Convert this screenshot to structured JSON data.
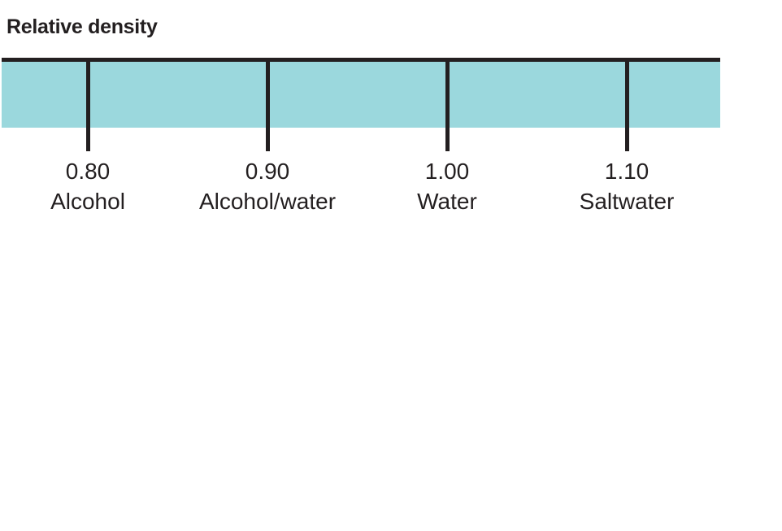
{
  "title": "Relative density",
  "colors": {
    "background": "#ffffff",
    "band": "#9bd8dd",
    "line": "#231f20",
    "text": "#231f20"
  },
  "scale": {
    "ticks": [
      {
        "value": "0.80",
        "substance": "Alcohol"
      },
      {
        "value": "0.90",
        "substance": "Alcohol/water"
      },
      {
        "value": "1.00",
        "substance": "Water"
      },
      {
        "value": "1.10",
        "substance": "Saltwater"
      }
    ]
  },
  "chart_data": {
    "type": "scatter",
    "variant": "number-line",
    "title": "Relative density",
    "orientation": "horizontal",
    "points": [
      {
        "x": 0.8,
        "label": "Alcohol"
      },
      {
        "x": 0.9,
        "label": "Alcohol/water"
      },
      {
        "x": 1.0,
        "label": "Water"
      },
      {
        "x": 1.1,
        "label": "Saltwater"
      }
    ],
    "axis": {
      "min": 0.75,
      "max": 1.15,
      "tick_values": [
        0.8,
        0.9,
        1.0,
        1.1
      ],
      "tick_label_format": "two-decimal",
      "grid": false
    },
    "legend": false
  }
}
